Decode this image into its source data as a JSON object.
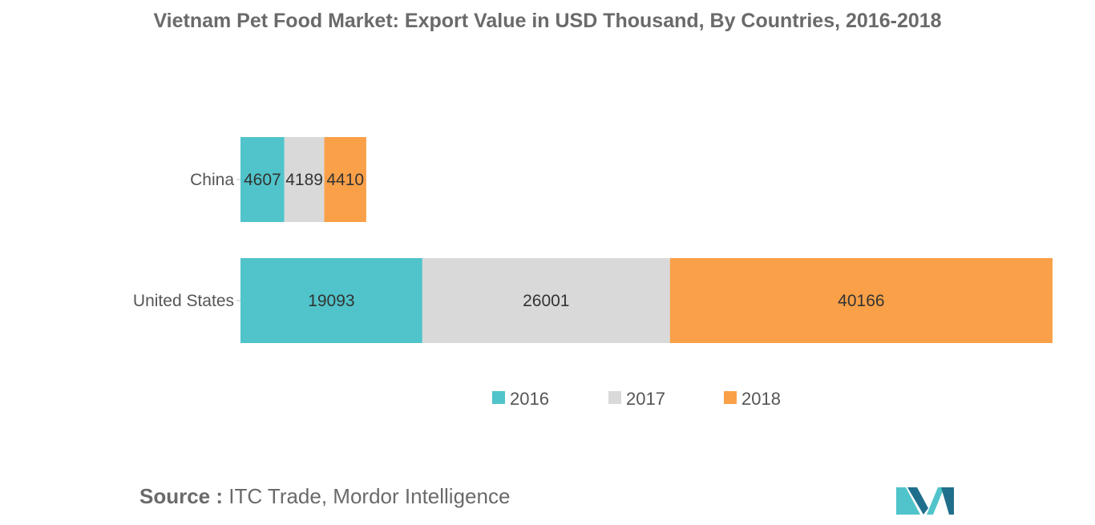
{
  "chart_data": {
    "type": "bar",
    "orientation": "horizontal",
    "stacked": true,
    "title": "Vietnam Pet Food Market: Export Value in USD Thousand, By Countries, 2016-2018",
    "categories": [
      "China",
      "United States"
    ],
    "series": [
      {
        "name": "2016",
        "values": [
          4607,
          19093
        ],
        "color": "#50C4CA"
      },
      {
        "name": "2017",
        "values": [
          4189,
          26001
        ],
        "color": "#D9D9D9"
      },
      {
        "name": "2018",
        "values": [
          4410,
          40166
        ],
        "color": "#FAA048"
      }
    ],
    "xlabel": "",
    "ylabel": "",
    "xlim": [
      0,
      85260
    ],
    "grid": false,
    "legend": "bottom"
  },
  "source": {
    "key": "Source :",
    "text": "ITC Trade, Mordor Intelligence"
  },
  "logo": {
    "name": "mordor-intelligence-logo",
    "colors": [
      "#50C4CA",
      "#1F6E8C"
    ]
  }
}
